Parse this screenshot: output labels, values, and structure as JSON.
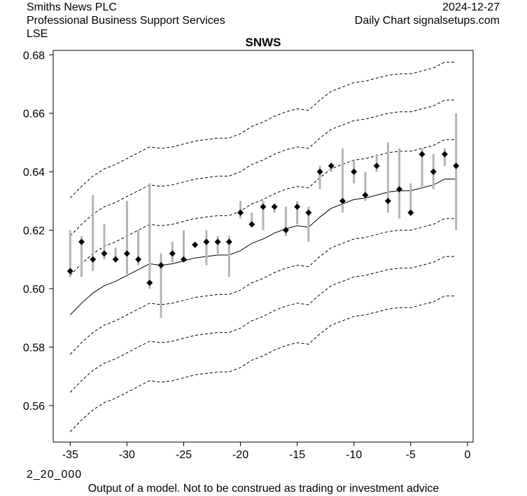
{
  "header": {
    "company": "Smiths News PLC",
    "sector": "Professional Business Support Services",
    "exchange": "LSE",
    "date": "2024-12-27",
    "source": "Daily Chart signalsetups.com"
  },
  "footer": {
    "code": "2_20_000",
    "disclaimer": "Output of a model. Not to be construed as trading or investment advice"
  },
  "colors": {
    "bars": "#b4b4b4",
    "markers": "#000000",
    "lines": "#000000"
  },
  "chart_data": {
    "type": "line",
    "title": "SNWS",
    "xlabel": "",
    "ylabel": "",
    "xlim": [
      -36.5,
      0.5
    ],
    "ylim": [
      0.5475,
      0.6815
    ],
    "x_ticks": [
      -35,
      -30,
      -25,
      -20,
      -15,
      -10,
      -5,
      0
    ],
    "y_ticks": [
      0.56,
      0.58,
      0.6,
      0.62,
      0.64,
      0.66,
      0.68
    ],
    "x_tick_labels": [
      "-35",
      "-30",
      "-25",
      "-20",
      "-15",
      "-10",
      "-5",
      "0"
    ],
    "y_tick_labels": [
      "0.56",
      "0.58",
      "0.60",
      "0.62",
      "0.64",
      "0.66",
      "0.68"
    ],
    "grid": false,
    "x": [
      -35,
      -34,
      -33,
      -32,
      -31,
      -30,
      -29,
      -28,
      -27,
      -26,
      -25,
      -24,
      -23,
      -22,
      -21,
      -20,
      -19,
      -18,
      -17,
      -16,
      -15,
      -14,
      -13,
      -12,
      -11,
      -10,
      -9,
      -8,
      -7,
      -6,
      -5,
      -4,
      -3,
      -2,
      -1
    ],
    "ohlc": {
      "high": [
        0.62,
        0.618,
        0.632,
        0.622,
        0.614,
        0.63,
        0.62,
        0.636,
        0.612,
        0.616,
        0.62,
        0.615,
        0.62,
        0.618,
        0.618,
        0.63,
        0.626,
        0.63,
        0.629,
        0.628,
        0.63,
        0.628,
        0.642,
        0.643,
        0.648,
        0.644,
        0.64,
        0.646,
        0.65,
        0.648,
        0.636,
        0.648,
        0.646,
        0.648,
        0.66
      ],
      "low": [
        0.604,
        0.604,
        0.606,
        0.61,
        0.609,
        0.605,
        0.608,
        0.6,
        0.59,
        0.609,
        0.609,
        0.614,
        0.608,
        0.612,
        0.604,
        0.624,
        0.621,
        0.62,
        0.626,
        0.618,
        0.622,
        0.616,
        0.634,
        0.64,
        0.626,
        0.636,
        0.63,
        0.64,
        0.626,
        0.624,
        0.625,
        0.634,
        0.634,
        0.642,
        0.62
      ],
      "close": [
        0.606,
        0.616,
        0.61,
        0.612,
        0.61,
        0.612,
        0.61,
        0.602,
        0.608,
        0.612,
        0.61,
        0.615,
        0.616,
        0.616,
        0.616,
        0.626,
        0.622,
        0.628,
        0.628,
        0.62,
        0.628,
        0.626,
        0.64,
        0.642,
        0.63,
        0.64,
        0.632,
        0.642,
        0.63,
        0.634,
        0.626,
        0.646,
        0.64,
        0.646,
        0.642
      ]
    },
    "series": [
      {
        "name": "center",
        "style": "solid",
        "values": [
          0.591,
          0.595,
          0.5985,
          0.601,
          0.6025,
          0.6045,
          0.6065,
          0.6085,
          0.608,
          0.6085,
          0.6095,
          0.6105,
          0.611,
          0.6115,
          0.6115,
          0.613,
          0.6155,
          0.617,
          0.619,
          0.6205,
          0.6215,
          0.621,
          0.6245,
          0.6275,
          0.629,
          0.6305,
          0.631,
          0.632,
          0.633,
          0.6335,
          0.6335,
          0.6345,
          0.6355,
          0.6375,
          0.6375
        ]
      },
      {
        "name": "upper_1",
        "style": "dashed",
        "values": [
          0.6045,
          0.6085,
          0.612,
          0.6145,
          0.616,
          0.618,
          0.62,
          0.622,
          0.6215,
          0.622,
          0.623,
          0.624,
          0.6245,
          0.625,
          0.625,
          0.6265,
          0.629,
          0.6305,
          0.6325,
          0.634,
          0.635,
          0.6345,
          0.638,
          0.641,
          0.6425,
          0.644,
          0.6445,
          0.6455,
          0.6465,
          0.647,
          0.647,
          0.648,
          0.649,
          0.651,
          0.651
        ]
      },
      {
        "name": "upper_2",
        "style": "dashed",
        "values": [
          0.618,
          0.622,
          0.6255,
          0.628,
          0.6295,
          0.6315,
          0.6335,
          0.6355,
          0.635,
          0.6355,
          0.6365,
          0.6375,
          0.638,
          0.6385,
          0.6385,
          0.64,
          0.6425,
          0.644,
          0.646,
          0.6475,
          0.6485,
          0.648,
          0.6515,
          0.6545,
          0.656,
          0.6575,
          0.658,
          0.659,
          0.66,
          0.6605,
          0.6605,
          0.6615,
          0.6625,
          0.6645,
          0.6645
        ]
      },
      {
        "name": "upper_3",
        "style": "dashed",
        "values": [
          0.631,
          0.635,
          0.6385,
          0.641,
          0.6425,
          0.6445,
          0.6465,
          0.6485,
          0.648,
          0.6485,
          0.6495,
          0.6505,
          0.651,
          0.6515,
          0.6515,
          0.653,
          0.6555,
          0.657,
          0.659,
          0.6605,
          0.6615,
          0.661,
          0.6645,
          0.6675,
          0.669,
          0.6705,
          0.671,
          0.672,
          0.673,
          0.6735,
          0.6735,
          0.6745,
          0.6755,
          0.6775,
          0.6775
        ]
      },
      {
        "name": "lower_1",
        "style": "dashed",
        "values": [
          0.5775,
          0.5815,
          0.585,
          0.5875,
          0.589,
          0.591,
          0.593,
          0.595,
          0.5945,
          0.595,
          0.596,
          0.597,
          0.5975,
          0.598,
          0.598,
          0.5995,
          0.602,
          0.6035,
          0.6055,
          0.607,
          0.608,
          0.6075,
          0.611,
          0.614,
          0.6155,
          0.617,
          0.6175,
          0.6185,
          0.6195,
          0.62,
          0.62,
          0.621,
          0.622,
          0.624,
          0.624
        ]
      },
      {
        "name": "lower_2",
        "style": "dashed",
        "values": [
          0.5645,
          0.5685,
          0.572,
          0.5745,
          0.576,
          0.578,
          0.58,
          0.582,
          0.5815,
          0.582,
          0.583,
          0.584,
          0.5845,
          0.585,
          0.585,
          0.5865,
          0.589,
          0.5905,
          0.5925,
          0.594,
          0.595,
          0.5945,
          0.598,
          0.601,
          0.6025,
          0.604,
          0.6045,
          0.6055,
          0.6065,
          0.607,
          0.607,
          0.608,
          0.609,
          0.611,
          0.611
        ]
      },
      {
        "name": "lower_3",
        "style": "dashed",
        "values": [
          0.551,
          0.555,
          0.5585,
          0.561,
          0.5625,
          0.5645,
          0.5665,
          0.5685,
          0.568,
          0.5685,
          0.5695,
          0.5705,
          0.571,
          0.5715,
          0.5715,
          0.573,
          0.5755,
          0.577,
          0.579,
          0.5805,
          0.5815,
          0.581,
          0.5845,
          0.5875,
          0.589,
          0.5905,
          0.591,
          0.592,
          0.593,
          0.5935,
          0.5935,
          0.5945,
          0.5955,
          0.5975,
          0.5975
        ]
      }
    ]
  }
}
